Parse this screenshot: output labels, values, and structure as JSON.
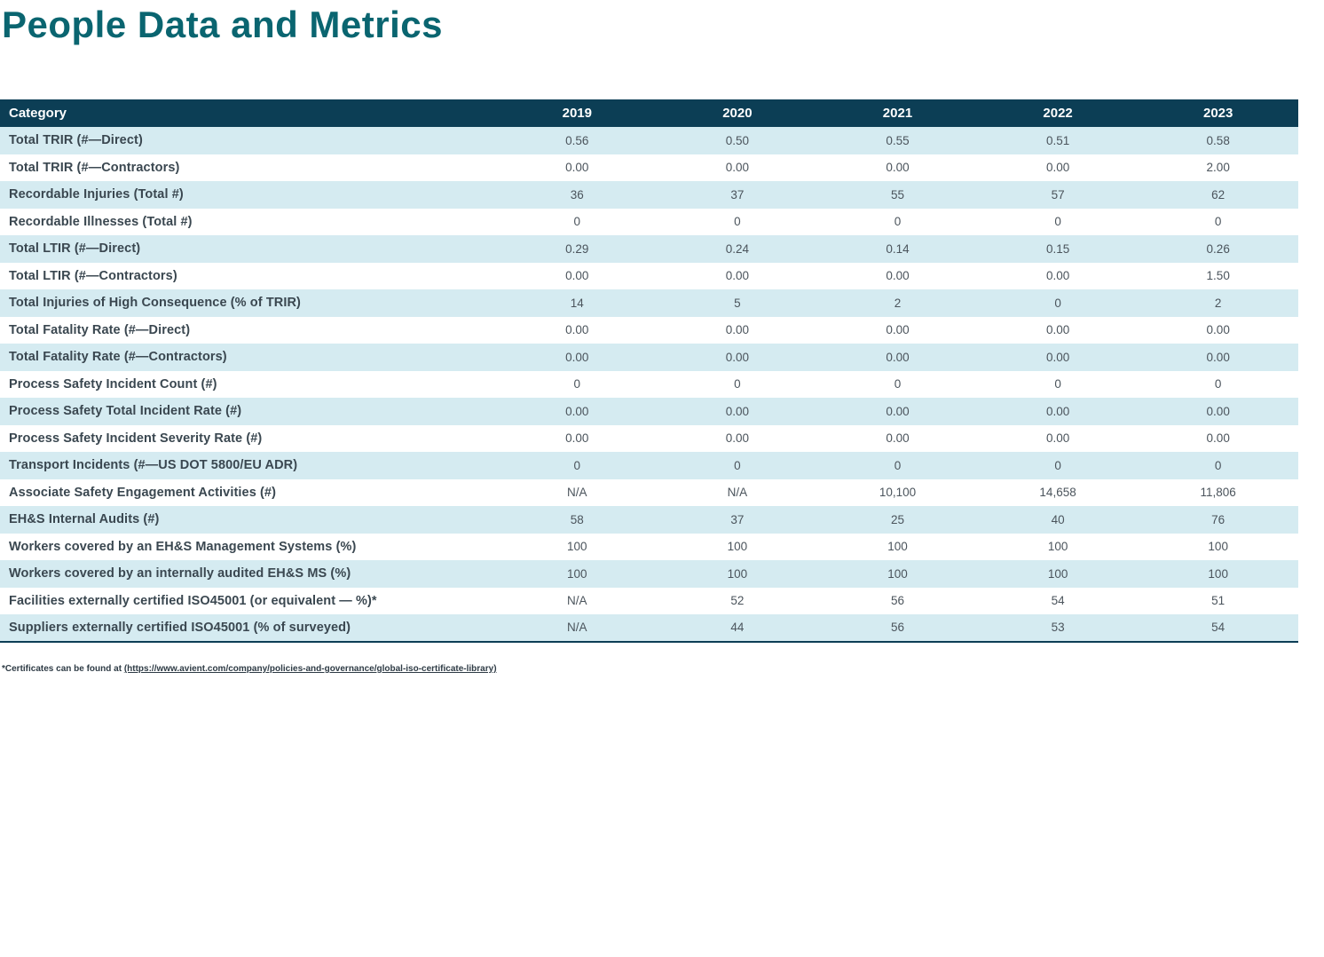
{
  "page": {
    "title": "People Data and Metrics"
  },
  "colors": {
    "title_teal": "#0a6570",
    "header_bg": "#0c3e55",
    "stripe_blue": "#d5ebf1",
    "label_text": "#3a4750",
    "value_text": "#4b545c",
    "table_bottom_border": "#0c3e55"
  },
  "table": {
    "columns": [
      "Category",
      "2019",
      "2020",
      "2021",
      "2022",
      "2023"
    ],
    "rows": [
      {
        "label": "Total TRIR (#—Direct)",
        "values": [
          "0.56",
          "0.50",
          "0.55",
          "0.51",
          "0.58"
        ]
      },
      {
        "label": "Total TRIR (#—Contractors)",
        "values": [
          "0.00",
          "0.00",
          "0.00",
          "0.00",
          "2.00"
        ]
      },
      {
        "label": "Recordable Injuries (Total #)",
        "values": [
          "36",
          "37",
          "55",
          "57",
          "62"
        ]
      },
      {
        "label": "Recordable Illnesses (Total #)",
        "values": [
          "0",
          "0",
          "0",
          "0",
          "0"
        ]
      },
      {
        "label": "Total LTIR (#—Direct)",
        "values": [
          "0.29",
          "0.24",
          "0.14",
          "0.15",
          "0.26"
        ]
      },
      {
        "label": "Total LTIR (#—Contractors)",
        "values": [
          "0.00",
          "0.00",
          "0.00",
          "0.00",
          "1.50"
        ]
      },
      {
        "label": "Total Injuries of High Consequence (% of TRIR)",
        "values": [
          "14",
          "5",
          "2",
          "0",
          "2"
        ]
      },
      {
        "label": "Total Fatality Rate (#—Direct)",
        "values": [
          "0.00",
          "0.00",
          "0.00",
          "0.00",
          "0.00"
        ]
      },
      {
        "label": "Total Fatality Rate (#—Contractors)",
        "values": [
          "0.00",
          "0.00",
          "0.00",
          "0.00",
          "0.00"
        ]
      },
      {
        "label": "Process Safety Incident Count (#)",
        "values": [
          "0",
          "0",
          "0",
          "0",
          "0"
        ]
      },
      {
        "label": "Process Safety Total Incident Rate (#)",
        "values": [
          "0.00",
          "0.00",
          "0.00",
          "0.00",
          "0.00"
        ]
      },
      {
        "label": "Process Safety Incident Severity Rate (#)",
        "values": [
          "0.00",
          "0.00",
          "0.00",
          "0.00",
          "0.00"
        ]
      },
      {
        "label": "Transport Incidents (#—US DOT 5800/EU ADR)",
        "values": [
          "0",
          "0",
          "0",
          "0",
          "0"
        ]
      },
      {
        "label": "Associate Safety Engagement Activities (#)",
        "values": [
          "N/A",
          "N/A",
          "10,100",
          "14,658",
          "11,806"
        ]
      },
      {
        "label": "EH&S Internal Audits (#)",
        "values": [
          "58",
          "37",
          "25",
          "40",
          "76"
        ]
      },
      {
        "label": "Workers covered by an EH&S Management Systems (%)",
        "values": [
          "100",
          "100",
          "100",
          "100",
          "100"
        ]
      },
      {
        "label": "Workers covered by an internally audited EH&S MS (%)",
        "values": [
          "100",
          "100",
          "100",
          "100",
          "100"
        ]
      },
      {
        "label": "Facilities externally certified ISO45001 (or equivalent — %)*",
        "values": [
          "N/A",
          "52",
          "56",
          "54",
          "51"
        ]
      },
      {
        "label": "Suppliers externally certified ISO45001 (% of surveyed)",
        "values": [
          "N/A",
          "44",
          "56",
          "53",
          "54"
        ]
      }
    ]
  },
  "footnote": {
    "prefix": "*Certificates can be found at ",
    "link_text": "(https://www.avient.com/company/policies-and-governance/global-iso-certificate-library)"
  }
}
